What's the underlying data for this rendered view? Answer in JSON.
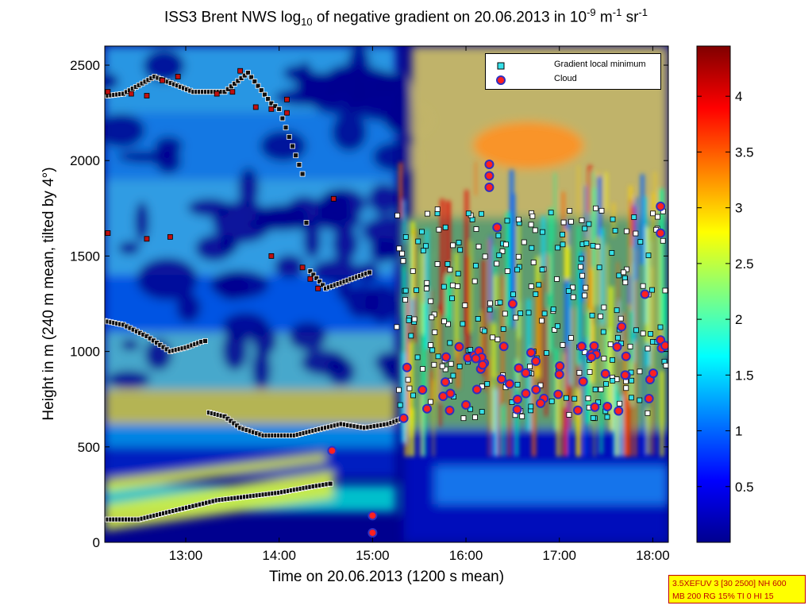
{
  "title": {
    "text_1": "ISS3 Brent NWS log",
    "sub": "10",
    "text_2": " of negative gradient on 20.06.2013 in 10",
    "sup_1": "-9",
    "text_3": " m",
    "sup_2": "-1",
    "text_4": " sr",
    "sup_3": "-1"
  },
  "infobox": {
    "line1": "3.5XEFUV 3 [30 2500] NH 600",
    "line2": "MB 200 RG 15% TI 0 HI 15"
  },
  "chart_data": {
    "type": "heatmap",
    "xlabel": "Time on 20.06.2013 (1200 s mean)",
    "ylabel": "Height in m (240 m mean, tilted by 4°)",
    "xlim": [
      "12:08",
      "18:10"
    ],
    "ylim": [
      0,
      2600
    ],
    "x_ticks": [
      "13:00",
      "14:00",
      "15:00",
      "16:00",
      "17:00",
      "18:00"
    ],
    "y_ticks": [
      0,
      500,
      1000,
      1500,
      2000,
      2500
    ],
    "colorbar": {
      "range": [
        0,
        4.45
      ],
      "ticks": [
        0.5,
        1,
        1.5,
        2,
        2.5,
        3,
        3.5,
        4
      ],
      "colormap": "jet"
    },
    "legend": {
      "placement": "top-right",
      "entries": [
        "Gradient local minimum",
        "Cloud"
      ]
    },
    "colors": {
      "gradient_minimum_fill": "#35e0e8",
      "cloud_fill": "#ff2020",
      "cloud_edge": "#3030c0"
    },
    "series": [
      {
        "name": "Gradient local minimum",
        "layers": [
          {
            "x": [
              "12:08",
              "12:30",
              "12:50",
              "13:05",
              "13:20",
              "13:40",
              "14:00",
              "14:20",
              "14:35"
            ],
            "y": [
              120,
              120,
              160,
              190,
              220,
              240,
              260,
              290,
              310
            ]
          },
          {
            "x": [
              "13:15",
              "13:25",
              "13:35",
              "13:50",
              "14:10",
              "14:30",
              "14:40",
              "14:55",
              "15:10",
              "15:20"
            ],
            "y": [
              680,
              660,
              600,
              560,
              560,
              600,
              620,
              600,
              620,
              650
            ]
          },
          {
            "x": [
              "12:08",
              "12:20",
              "12:35",
              "12:50",
              "13:00",
              "13:10",
              "13:15"
            ],
            "y": [
              1160,
              1140,
              1080,
              1000,
              1020,
              1050,
              1060
            ]
          },
          {
            "x": [
              "12:10",
              "12:20",
              "12:40",
              "13:05",
              "13:25",
              "13:40",
              "13:55",
              "14:00",
              "14:15",
              "14:20",
              "14:30",
              "15:00"
            ],
            "y": [
              2340,
              2350,
              2440,
              2360,
              2360,
              2460,
              2300,
              2270,
              1930,
              1420,
              1330,
              1420
            ]
          }
        ]
      },
      {
        "name": "Cloud",
        "x": [
          "14:34",
          "15:00",
          "15:00",
          "15:20",
          "15:35",
          "15:50",
          "16:00",
          "16:15",
          "16:15",
          "16:15",
          "16:20",
          "16:30",
          "16:45",
          "17:00",
          "17:20",
          "17:40",
          "17:55",
          "18:05",
          "18:05",
          "18:05"
        ],
        "y": [
          480,
          140,
          50,
          650,
          700,
          780,
          720,
          1980,
          1920,
          1860,
          1650,
          1250,
          800,
          880,
          980,
          1130,
          1300,
          1760,
          1620,
          1060
        ]
      }
    ]
  }
}
